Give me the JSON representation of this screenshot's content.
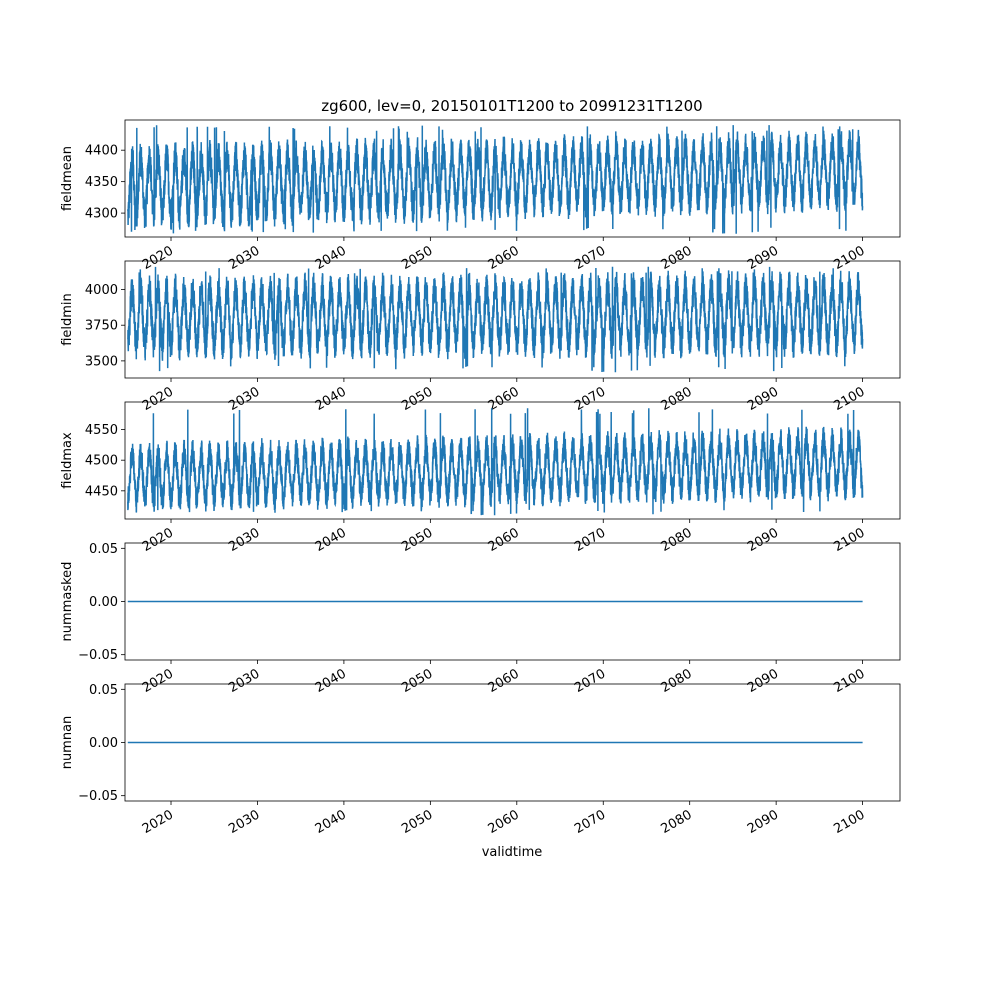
{
  "chart_data": {
    "type": "line",
    "title": "zg600, lev=0, 20150101T1200 to 20991231T1200",
    "xlabel": "validtime",
    "x_range": [
      "2015-01-01",
      "2099-12-31"
    ],
    "xlim": [
      "2014-09-05",
      "2104-05-01"
    ],
    "x_ticks": [
      "2020",
      "2030",
      "2040",
      "2050",
      "2060",
      "2070",
      "2080",
      "2090",
      "2100"
    ],
    "line_color": "#1f77b4",
    "grid": false,
    "panels": [
      {
        "ylabel": "fieldmean",
        "ylim": [
          4262,
          4448
        ],
        "y_ticks": [
          "4300",
          "4350",
          "4400"
        ],
        "y_tick_values": [
          4300,
          4350,
          4400
        ],
        "series": {
          "x": [
            "2015-01-01",
            "2015-07-01",
            "2016-01-01",
            "2016-07-01",
            "2020-01-01",
            "2030-01-01",
            "2040-01-01",
            "2050-01-01",
            "2060-01-01",
            "2070-01-01",
            "2080-01-01",
            "2088-07-01",
            "2090-01-01",
            "2099-12-31"
          ],
          "y": [
            4345,
            4395,
            4275,
            4400,
            4290,
            4280,
            4300,
            4300,
            4305,
            4290,
            4300,
            4440,
            4320,
            4370
          ],
          "seasonal_min_start": 4285,
          "seasonal_min_end": 4315,
          "seasonal_max_start": 4400,
          "seasonal_max_end": 4420,
          "overall_min": 4267,
          "overall_max": 4440
        }
      },
      {
        "ylabel": "fieldmin",
        "ylim": [
          3380,
          4200
        ],
        "y_ticks": [
          "3500",
          "3750",
          "4000"
        ],
        "y_tick_values": [
          3500,
          3750,
          4000
        ],
        "series": {
          "seasonal_min_start": 3560,
          "seasonal_min_end": 3580,
          "seasonal_max_start": 4050,
          "seasonal_max_end": 4080,
          "overall_min": 3420,
          "overall_max": 4160
        }
      },
      {
        "ylabel": "fieldmax",
        "ylim": [
          4404,
          4595
        ],
        "y_ticks": [
          "4450",
          "4500",
          "4550"
        ],
        "y_tick_values": [
          4450,
          4500,
          4550
        ],
        "series": {
          "seasonal_min_start": 4425,
          "seasonal_min_end": 4445,
          "seasonal_max_start": 4520,
          "seasonal_max_end": 4545,
          "overall_min": 4410,
          "overall_max": 4585
        }
      },
      {
        "ylabel": "nummasked",
        "ylim": [
          -0.055,
          0.055
        ],
        "y_ticks": [
          "−0.05",
          "0.00",
          "0.05"
        ],
        "y_tick_values": [
          -0.05,
          0.0,
          0.05
        ],
        "series": {
          "constant": 0.0
        }
      },
      {
        "ylabel": "numnan",
        "ylim": [
          -0.055,
          0.055
        ],
        "y_ticks": [
          "−0.05",
          "0.00",
          "0.05"
        ],
        "y_tick_values": [
          -0.05,
          0.0,
          0.05
        ],
        "series": {
          "constant": 0.0
        }
      }
    ]
  }
}
